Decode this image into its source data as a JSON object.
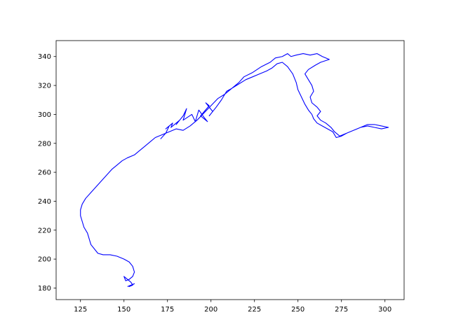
{
  "chart_data": {
    "type": "line",
    "title": "",
    "xlabel": "",
    "ylabel": "",
    "xlim": [
      111,
      311
    ],
    "ylim": [
      172,
      351
    ],
    "xticks": [
      125,
      150,
      175,
      200,
      225,
      250,
      275,
      300
    ],
    "yticks": [
      180,
      200,
      220,
      240,
      260,
      280,
      300,
      320,
      340
    ],
    "grid": false,
    "legend": "none",
    "series": [
      {
        "color": "#0000ff",
        "points": [
          [
            171,
            283
          ],
          [
            174,
            287
          ],
          [
            176,
            292
          ],
          [
            174,
            290
          ],
          [
            178,
            294
          ],
          [
            177,
            291
          ],
          [
            182,
            296
          ],
          [
            180,
            293
          ],
          [
            184,
            299
          ],
          [
            186,
            304
          ],
          [
            184,
            296
          ],
          [
            189,
            300
          ],
          [
            191,
            295
          ],
          [
            193,
            303
          ],
          [
            196,
            298
          ],
          [
            198,
            295
          ],
          [
            194,
            299
          ],
          [
            199,
            306
          ],
          [
            197,
            308
          ],
          [
            201,
            302
          ],
          [
            199,
            299
          ],
          [
            203,
            305
          ],
          [
            206,
            310
          ],
          [
            209,
            316
          ],
          [
            212,
            318
          ],
          [
            216,
            322
          ],
          [
            219,
            326
          ],
          [
            224,
            329
          ],
          [
            229,
            333
          ],
          [
            234,
            336
          ],
          [
            237,
            339
          ],
          [
            241,
            340
          ],
          [
            244,
            342
          ],
          [
            246,
            340
          ],
          [
            249,
            341
          ],
          [
            253,
            342
          ],
          [
            257,
            341
          ],
          [
            261,
            342
          ],
          [
            264,
            340
          ],
          [
            268,
            338
          ],
          [
            263,
            336
          ],
          [
            260,
            334
          ],
          [
            256,
            331
          ],
          [
            254,
            328
          ],
          [
            256,
            324
          ],
          [
            258,
            320
          ],
          [
            259,
            316
          ],
          [
            257,
            312
          ],
          [
            258,
            308
          ],
          [
            261,
            305
          ],
          [
            263,
            302
          ],
          [
            261,
            299
          ],
          [
            263,
            296
          ],
          [
            266,
            294
          ],
          [
            269,
            291
          ],
          [
            271,
            288
          ],
          [
            274,
            285
          ],
          [
            278,
            287
          ],
          [
            282,
            289
          ],
          [
            286,
            291
          ],
          [
            290,
            293
          ],
          [
            294,
            293
          ],
          [
            298,
            292
          ],
          [
            302,
            291
          ],
          [
            298,
            290
          ],
          [
            294,
            291
          ],
          [
            290,
            292
          ],
          [
            286,
            291
          ],
          [
            282,
            289
          ],
          [
            278,
            287
          ],
          [
            275,
            285
          ],
          [
            272,
            284
          ],
          [
            270,
            288
          ],
          [
            267,
            290
          ],
          [
            264,
            292
          ],
          [
            261,
            294
          ],
          [
            259,
            297
          ],
          [
            258,
            300
          ],
          [
            256,
            303
          ],
          [
            254,
            307
          ],
          [
            252,
            312
          ],
          [
            250,
            317
          ],
          [
            249,
            322
          ],
          [
            247,
            328
          ],
          [
            244,
            333
          ],
          [
            241,
            336
          ],
          [
            238,
            335
          ],
          [
            235,
            332
          ],
          [
            232,
            330
          ],
          [
            228,
            328
          ],
          [
            224,
            326
          ],
          [
            220,
            324
          ],
          [
            216,
            321
          ],
          [
            212,
            318
          ],
          [
            208,
            314
          ],
          [
            204,
            311
          ],
          [
            200,
            306
          ],
          [
            196,
            301
          ],
          [
            192,
            296
          ],
          [
            188,
            292
          ],
          [
            184,
            289
          ],
          [
            180,
            290
          ],
          [
            176,
            288
          ],
          [
            172,
            286
          ],
          [
            168,
            284
          ],
          [
            165,
            281
          ],
          [
            162,
            278
          ],
          [
            159,
            275
          ],
          [
            156,
            272
          ],
          [
            152,
            270
          ],
          [
            149,
            268
          ],
          [
            146,
            265
          ],
          [
            143,
            262
          ],
          [
            140,
            258
          ],
          [
            137,
            254
          ],
          [
            134,
            250
          ],
          [
            131,
            246
          ],
          [
            128,
            242
          ],
          [
            126,
            238
          ],
          [
            125,
            234
          ],
          [
            125,
            230
          ],
          [
            126,
            226
          ],
          [
            127,
            222
          ],
          [
            129,
            218
          ],
          [
            130,
            214
          ],
          [
            131,
            210
          ],
          [
            133,
            207
          ],
          [
            135,
            204
          ],
          [
            138,
            203
          ],
          [
            142,
            203
          ],
          [
            146,
            202
          ],
          [
            150,
            200
          ],
          [
            153,
            198
          ],
          [
            155,
            195
          ],
          [
            156,
            191
          ],
          [
            155,
            188
          ],
          [
            153,
            186
          ],
          [
            151,
            185
          ],
          [
            150,
            188
          ],
          [
            152,
            186
          ],
          [
            154,
            184
          ],
          [
            155,
            182
          ],
          [
            153,
            181
          ],
          [
            156,
            183
          ],
          [
            152,
            181
          ]
        ]
      }
    ]
  }
}
